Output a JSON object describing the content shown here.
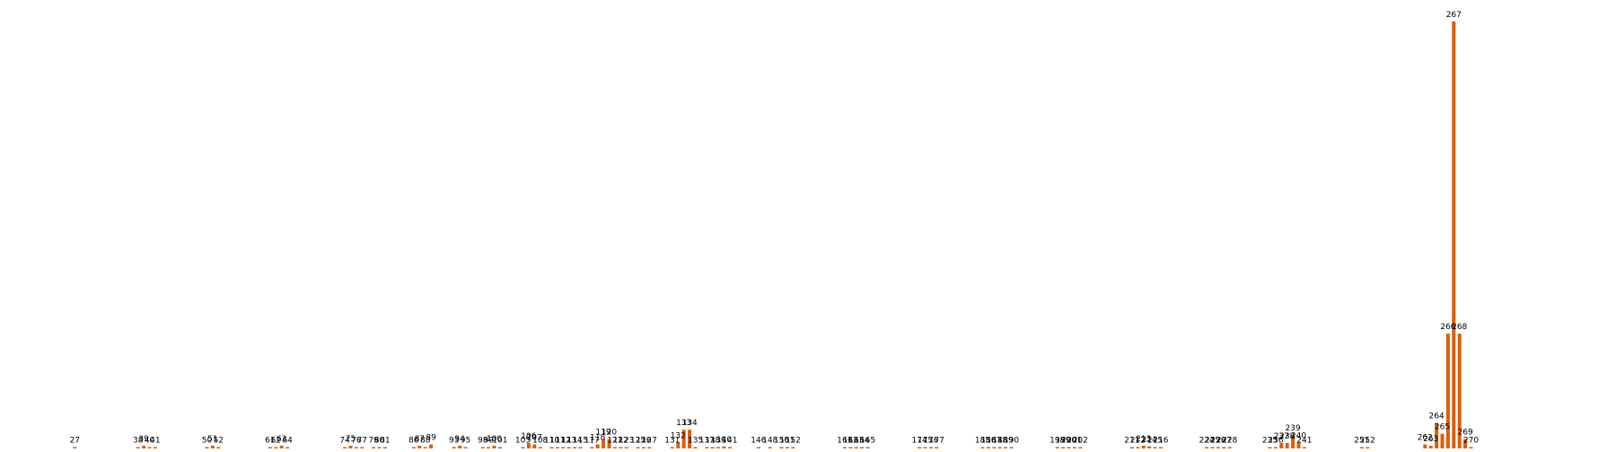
{
  "chart_data": {
    "type": "bar",
    "title": "",
    "xlabel": "",
    "ylabel": "",
    "ylim": [
      0,
      320
    ],
    "grid": false,
    "legend": "none",
    "bar_color": "#d95f0e",
    "points": [
      {
        "x": 27,
        "label": "27",
        "value": 0.5
      },
      {
        "x": 38,
        "label": "38",
        "value": 1.0
      },
      {
        "x": 39,
        "label": "39",
        "value": 2.0
      },
      {
        "x": 40,
        "label": "40",
        "value": 1.0
      },
      {
        "x": 41,
        "label": "41",
        "value": 0.5
      },
      {
        "x": 50,
        "label": "50",
        "value": 1.0
      },
      {
        "x": 51,
        "label": "51",
        "value": 2.0
      },
      {
        "x": 52,
        "label": "52",
        "value": 1.0
      },
      {
        "x": 61,
        "label": "61",
        "value": 0.5
      },
      {
        "x": 62,
        "label": "62",
        "value": 1.0
      },
      {
        "x": 63,
        "label": "63",
        "value": 2.0
      },
      {
        "x": 64,
        "label": "64",
        "value": 1.0
      },
      {
        "x": 74,
        "label": "74",
        "value": 1.0
      },
      {
        "x": 75,
        "label": "75",
        "value": 2.0
      },
      {
        "x": 76,
        "label": "76",
        "value": 1.0
      },
      {
        "x": 77,
        "label": "77",
        "value": 0.5
      },
      {
        "x": 79,
        "label": "79",
        "value": 1.0
      },
      {
        "x": 80,
        "label": "80",
        "value": 1.0
      },
      {
        "x": 81,
        "label": "81",
        "value": 0.5
      },
      {
        "x": 86,
        "label": "86",
        "value": 1.0
      },
      {
        "x": 87,
        "label": "87",
        "value": 2.0
      },
      {
        "x": 88,
        "label": "88",
        "value": 1.0
      },
      {
        "x": 89,
        "label": "89",
        "value": 3.0
      },
      {
        "x": 93,
        "label": "93",
        "value": 1.0
      },
      {
        "x": 94,
        "label": "94",
        "value": 2.0
      },
      {
        "x": 95,
        "label": "95",
        "value": 0.5
      },
      {
        "x": 98,
        "label": "98",
        "value": 1.0
      },
      {
        "x": 99,
        "label": "99",
        "value": 1.0
      },
      {
        "x": 100,
        "label": "100",
        "value": 2.0
      },
      {
        "x": 101,
        "label": "101",
        "value": 0.5
      },
      {
        "x": 105,
        "label": "105",
        "value": 1.0
      },
      {
        "x": 106,
        "label": "106",
        "value": 4.0
      },
      {
        "x": 107,
        "label": "107",
        "value": 3.0
      },
      {
        "x": 108,
        "label": "108",
        "value": 0.5
      },
      {
        "x": 110,
        "label": "110",
        "value": 1.0
      },
      {
        "x": 111,
        "label": "111",
        "value": 1.0
      },
      {
        "x": 112,
        "label": "112",
        "value": 1.0
      },
      {
        "x": 113,
        "label": "113",
        "value": 1.0
      },
      {
        "x": 114,
        "label": "114",
        "value": 0.5
      },
      {
        "x": 115,
        "label": "115",
        "value": 0.5
      },
      {
        "x": 117,
        "label": "117",
        "value": 0.5
      },
      {
        "x": 118,
        "label": "118",
        "value": 3.0
      },
      {
        "x": 119,
        "label": "119",
        "value": 7.0
      },
      {
        "x": 120,
        "label": "120",
        "value": 7.0
      },
      {
        "x": 121,
        "label": "121",
        "value": 1.0
      },
      {
        "x": 122,
        "label": "122",
        "value": 1.0
      },
      {
        "x": 123,
        "label": "123",
        "value": 0.5
      },
      {
        "x": 125,
        "label": "125",
        "value": 0.5
      },
      {
        "x": 126,
        "label": "126",
        "value": 0.5
      },
      {
        "x": 127,
        "label": "127",
        "value": 1.0
      },
      {
        "x": 131,
        "label": "131",
        "value": 0.5
      },
      {
        "x": 132,
        "label": "132",
        "value": 4.5
      },
      {
        "x": 133,
        "label": "133",
        "value": 14.0
      },
      {
        "x": 134,
        "label": "134",
        "value": 14.0
      },
      {
        "x": 135,
        "label": "135",
        "value": 0.5
      },
      {
        "x": 137,
        "label": "137",
        "value": 0.5
      },
      {
        "x": 138,
        "label": "138",
        "value": 1.0
      },
      {
        "x": 139,
        "label": "139",
        "value": 1.0
      },
      {
        "x": 140,
        "label": "140",
        "value": 1.5
      },
      {
        "x": 141,
        "label": "141",
        "value": 0.5
      },
      {
        "x": 146,
        "label": "146",
        "value": 0.2
      },
      {
        "x": 148,
        "label": "148",
        "value": 0.2
      },
      {
        "x": 150,
        "label": "150",
        "value": 0.5
      },
      {
        "x": 151,
        "label": "151",
        "value": 0.5
      },
      {
        "x": 152,
        "label": "152",
        "value": 0.5
      },
      {
        "x": 161,
        "label": "161",
        "value": 0.5
      },
      {
        "x": 162,
        "label": "162",
        "value": 0.5
      },
      {
        "x": 163,
        "label": "163",
        "value": 1.0
      },
      {
        "x": 164,
        "label": "164",
        "value": 0.5
      },
      {
        "x": 165,
        "label": "165",
        "value": 0.5
      },
      {
        "x": 174,
        "label": "174",
        "value": 0.5
      },
      {
        "x": 175,
        "label": "175",
        "value": 0.5
      },
      {
        "x": 176,
        "label": "176",
        "value": 0.5
      },
      {
        "x": 177,
        "label": "177",
        "value": 0.2
      },
      {
        "x": 185,
        "label": "185",
        "value": 0.5
      },
      {
        "x": 186,
        "label": "186",
        "value": 0.5
      },
      {
        "x": 187,
        "label": "187",
        "value": 1.0
      },
      {
        "x": 188,
        "label": "188",
        "value": 1.0
      },
      {
        "x": 189,
        "label": "189",
        "value": 1.0
      },
      {
        "x": 190,
        "label": "190",
        "value": 1.0
      },
      {
        "x": 198,
        "label": "198",
        "value": 0.5
      },
      {
        "x": 199,
        "label": "199",
        "value": 0.5
      },
      {
        "x": 200,
        "label": "200",
        "value": 1.0
      },
      {
        "x": 201,
        "label": "201",
        "value": 0.5
      },
      {
        "x": 202,
        "label": "202",
        "value": 0.2
      },
      {
        "x": 211,
        "label": "211",
        "value": 1.0
      },
      {
        "x": 212,
        "label": "212",
        "value": 1.0
      },
      {
        "x": 213,
        "label": "213",
        "value": 2.0
      },
      {
        "x": 214,
        "label": "214",
        "value": 1.5
      },
      {
        "x": 215,
        "label": "215",
        "value": 1.0
      },
      {
        "x": 216,
        "label": "216",
        "value": 0.5
      },
      {
        "x": 224,
        "label": "224",
        "value": 0.5
      },
      {
        "x": 225,
        "label": "225",
        "value": 0.5
      },
      {
        "x": 226,
        "label": "226",
        "value": 0.5
      },
      {
        "x": 227,
        "label": "227",
        "value": 1.0
      },
      {
        "x": 228,
        "label": "228",
        "value": 0.5
      },
      {
        "x": 235,
        "label": "235",
        "value": 0.5
      },
      {
        "x": 236,
        "label": "236",
        "value": 1.0
      },
      {
        "x": 237,
        "label": "237",
        "value": 4.0
      },
      {
        "x": 238,
        "label": "238",
        "value": 4.0
      },
      {
        "x": 239,
        "label": "239",
        "value": 10.0
      },
      {
        "x": 240,
        "label": "240",
        "value": 4.5
      },
      {
        "x": 241,
        "label": "241",
        "value": 1.0
      },
      {
        "x": 251,
        "label": "251",
        "value": 1.0
      },
      {
        "x": 252,
        "label": "252",
        "value": 0.5
      },
      {
        "x": 262,
        "label": "262",
        "value": 3.0
      },
      {
        "x": 263,
        "label": "263",
        "value": 2.0
      },
      {
        "x": 264,
        "label": "264",
        "value": 19.0
      },
      {
        "x": 265,
        "label": "265",
        "value": 11.0
      },
      {
        "x": 266,
        "label": "266",
        "value": 86.0
      },
      {
        "x": 267,
        "label": "267",
        "value": 320.0
      },
      {
        "x": 268,
        "label": "268",
        "value": 86.0
      },
      {
        "x": 269,
        "label": "269",
        "value": 7.0
      },
      {
        "x": 270,
        "label": "270",
        "value": 0.5
      }
    ]
  }
}
